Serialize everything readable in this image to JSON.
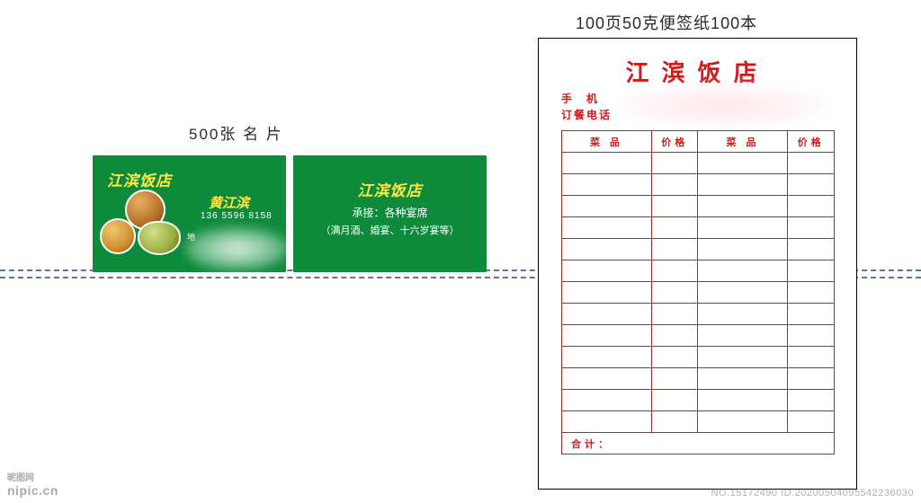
{
  "guidelines": {
    "color": "#1e3a8a"
  },
  "businessCard": {
    "sectionLabel": "500张 名 片",
    "restaurantName": "江滨饭店",
    "front": {
      "personName": "黄江滨",
      "phone": "136 5596 8158",
      "addressLabel": "地"
    },
    "back": {
      "subtitle": "承接：各种宴席",
      "description": "（满月酒、婚宴、十六岁宴等）"
    },
    "colors": {
      "background": "#0d8a3a",
      "titleColor": "#ffe845",
      "textColor": "#ffffff"
    }
  },
  "notepad": {
    "sectionLabel": "100页50克便签纸100本",
    "title": "江滨饭店",
    "contactLabels": {
      "mobile": "手　机",
      "bookingPhone": "订餐电话"
    },
    "table": {
      "headers": {
        "dish": "菜 品",
        "price": "价格"
      },
      "rowCount": 13,
      "totalLabel": "合计："
    },
    "colors": {
      "primary": "#d11a1a",
      "border": "#000000",
      "background": "#ffffff"
    }
  },
  "watermark": {
    "logo": "nipic.cn",
    "logoSub": "昵图网",
    "text": "NO.15172490 ID.20200504095542236030"
  }
}
